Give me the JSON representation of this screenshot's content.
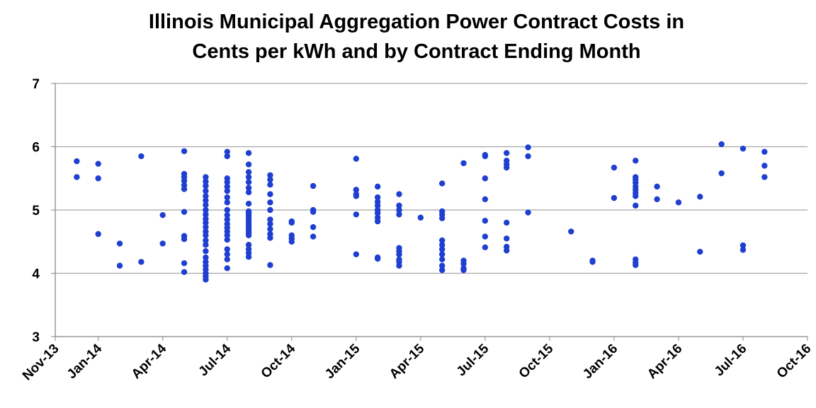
{
  "chart_data": {
    "type": "scatter",
    "title": [
      "Illinois Municipal Aggregation Power Contract Costs in",
      "Cents per kWh and by Contract Ending Month"
    ],
    "xlim": [
      "2013-11",
      "2016-10"
    ],
    "xticks": [
      {
        "value": "2013-11",
        "label": "Nov-13"
      },
      {
        "value": "2014-01",
        "label": "Jan-14"
      },
      {
        "value": "2014-04",
        "label": "Apr-14"
      },
      {
        "value": "2014-07",
        "label": "Jul-14"
      },
      {
        "value": "2014-10",
        "label": "Oct-14"
      },
      {
        "value": "2015-01",
        "label": "Jan-15"
      },
      {
        "value": "2015-04",
        "label": "Apr-15"
      },
      {
        "value": "2015-07",
        "label": "Jul-15"
      },
      {
        "value": "2015-10",
        "label": "Oct-15"
      },
      {
        "value": "2016-01",
        "label": "Jan-16"
      },
      {
        "value": "2016-04",
        "label": "Apr-16"
      },
      {
        "value": "2016-07",
        "label": "Jul-16"
      },
      {
        "value": "2016-10",
        "label": "Oct-16"
      }
    ],
    "ylim": [
      3,
      7
    ],
    "yticks": [
      3,
      4,
      5,
      6,
      7
    ],
    "grid": true,
    "color": "#1f3fd0",
    "x": [
      "2013-12",
      "2013-12",
      "2014-01",
      "2014-01",
      "2014-01",
      "2014-02",
      "2014-02",
      "2014-03",
      "2014-03",
      "2014-04",
      "2014-04",
      "2014-05",
      "2014-05",
      "2014-05",
      "2014-05",
      "2014-05",
      "2014-05",
      "2014-05",
      "2014-05",
      "2014-05",
      "2014-05",
      "2014-05",
      "2014-06",
      "2014-06",
      "2014-06",
      "2014-06",
      "2014-06",
      "2014-06",
      "2014-06",
      "2014-06",
      "2014-06",
      "2014-06",
      "2014-06",
      "2014-06",
      "2014-06",
      "2014-06",
      "2014-06",
      "2014-06",
      "2014-06",
      "2014-06",
      "2014-06",
      "2014-06",
      "2014-06",
      "2014-06",
      "2014-06",
      "2014-06",
      "2014-07",
      "2014-07",
      "2014-07",
      "2014-07",
      "2014-07",
      "2014-07",
      "2014-07",
      "2014-07",
      "2014-07",
      "2014-07",
      "2014-07",
      "2014-07",
      "2014-07",
      "2014-07",
      "2014-07",
      "2014-07",
      "2014-07",
      "2014-07",
      "2014-07",
      "2014-07",
      "2014-08",
      "2014-08",
      "2014-08",
      "2014-08",
      "2014-08",
      "2014-08",
      "2014-08",
      "2014-08",
      "2014-08",
      "2014-08",
      "2014-08",
      "2014-08",
      "2014-08",
      "2014-08",
      "2014-08",
      "2014-08",
      "2014-08",
      "2014-08",
      "2014-08",
      "2014-08",
      "2014-08",
      "2014-08",
      "2014-08",
      "2014-09",
      "2014-09",
      "2014-09",
      "2014-09",
      "2014-09",
      "2014-09",
      "2014-09",
      "2014-09",
      "2014-09",
      "2014-09",
      "2014-09",
      "2014-09",
      "2014-10",
      "2014-10",
      "2014-10",
      "2014-10",
      "2014-10",
      "2014-11",
      "2014-11",
      "2014-11",
      "2014-11",
      "2014-11",
      "2015-01",
      "2015-01",
      "2015-01",
      "2015-01",
      "2015-01",
      "2015-01",
      "2015-02",
      "2015-02",
      "2015-02",
      "2015-02",
      "2015-02",
      "2015-02",
      "2015-02",
      "2015-02",
      "2015-02",
      "2015-02",
      "2015-03",
      "2015-03",
      "2015-03",
      "2015-03",
      "2015-03",
      "2015-03",
      "2015-03",
      "2015-03",
      "2015-03",
      "2015-03",
      "2015-04",
      "2015-05",
      "2015-05",
      "2015-05",
      "2015-05",
      "2015-05",
      "2015-05",
      "2015-05",
      "2015-05",
      "2015-05",
      "2015-05",
      "2015-05",
      "2015-06",
      "2015-06",
      "2015-06",
      "2015-06",
      "2015-06",
      "2015-07",
      "2015-07",
      "2015-07",
      "2015-07",
      "2015-07",
      "2015-07",
      "2015-07",
      "2015-08",
      "2015-08",
      "2015-08",
      "2015-08",
      "2015-08",
      "2015-08",
      "2015-08",
      "2015-08",
      "2015-09",
      "2015-09",
      "2015-09",
      "2015-11",
      "2015-12",
      "2015-12",
      "2016-01",
      "2016-01",
      "2016-02",
      "2016-02",
      "2016-02",
      "2016-02",
      "2016-02",
      "2016-02",
      "2016-02",
      "2016-02",
      "2016-02",
      "2016-02",
      "2016-02",
      "2016-02",
      "2016-03",
      "2016-03",
      "2016-04",
      "2016-05",
      "2016-05",
      "2016-06",
      "2016-06",
      "2016-07",
      "2016-07",
      "2016-07",
      "2016-08",
      "2016-08",
      "2016-08"
    ],
    "y": [
      5.77,
      5.52,
      5.73,
      5.5,
      4.62,
      4.47,
      4.12,
      5.85,
      4.18,
      4.92,
      4.47,
      5.93,
      5.57,
      5.52,
      5.46,
      5.39,
      5.33,
      4.97,
      4.59,
      4.54,
      4.16,
      4.02,
      5.52,
      5.45,
      5.38,
      5.3,
      5.22,
      5.15,
      5.08,
      5.0,
      4.93,
      4.86,
      4.8,
      4.73,
      4.66,
      4.6,
      4.52,
      4.45,
      4.35,
      4.25,
      4.18,
      4.12,
      4.06,
      4.0,
      3.95,
      3.9,
      5.92,
      5.85,
      5.5,
      5.44,
      5.37,
      5.3,
      5.2,
      5.12,
      5.0,
      4.92,
      4.85,
      4.78,
      4.72,
      4.66,
      4.6,
      4.53,
      4.38,
      4.3,
      4.22,
      4.08,
      5.9,
      5.72,
      5.6,
      5.52,
      5.44,
      5.35,
      5.28,
      5.1,
      4.98,
      4.95,
      4.92,
      4.88,
      4.84,
      4.8,
      4.76,
      4.72,
      4.68,
      4.64,
      4.6,
      4.45,
      4.38,
      4.32,
      4.26,
      5.55,
      5.48,
      5.4,
      5.25,
      5.12,
      5.0,
      4.85,
      4.78,
      4.7,
      4.62,
      4.56,
      4.13,
      4.82,
      4.8,
      4.6,
      4.55,
      4.5,
      5.38,
      5.0,
      4.97,
      4.73,
      4.58,
      5.81,
      5.32,
      5.25,
      5.22,
      4.93,
      4.3,
      5.37,
      5.2,
      5.13,
      5.07,
      5.0,
      4.95,
      4.88,
      4.82,
      4.25,
      4.23,
      5.25,
      5.07,
      5.0,
      4.93,
      4.4,
      4.35,
      4.3,
      4.22,
      4.18,
      4.12,
      4.88,
      5.42,
      4.98,
      4.93,
      4.87,
      4.52,
      4.45,
      4.38,
      4.3,
      4.22,
      4.12,
      4.05,
      5.74,
      4.2,
      4.15,
      4.08,
      4.05,
      5.87,
      5.85,
      5.5,
      5.17,
      4.83,
      4.58,
      4.41,
      5.9,
      5.78,
      5.72,
      5.67,
      4.8,
      4.55,
      4.42,
      4.36,
      5.99,
      5.85,
      4.96,
      4.66,
      4.2,
      4.18,
      5.67,
      5.19,
      5.78,
      5.52,
      5.48,
      5.43,
      5.37,
      5.32,
      5.27,
      5.22,
      5.07,
      4.22,
      4.17,
      4.13,
      5.37,
      5.17,
      5.12,
      5.21,
      4.34,
      6.04,
      5.58,
      5.97,
      4.44,
      4.37,
      5.92,
      5.7,
      5.52
    ]
  }
}
